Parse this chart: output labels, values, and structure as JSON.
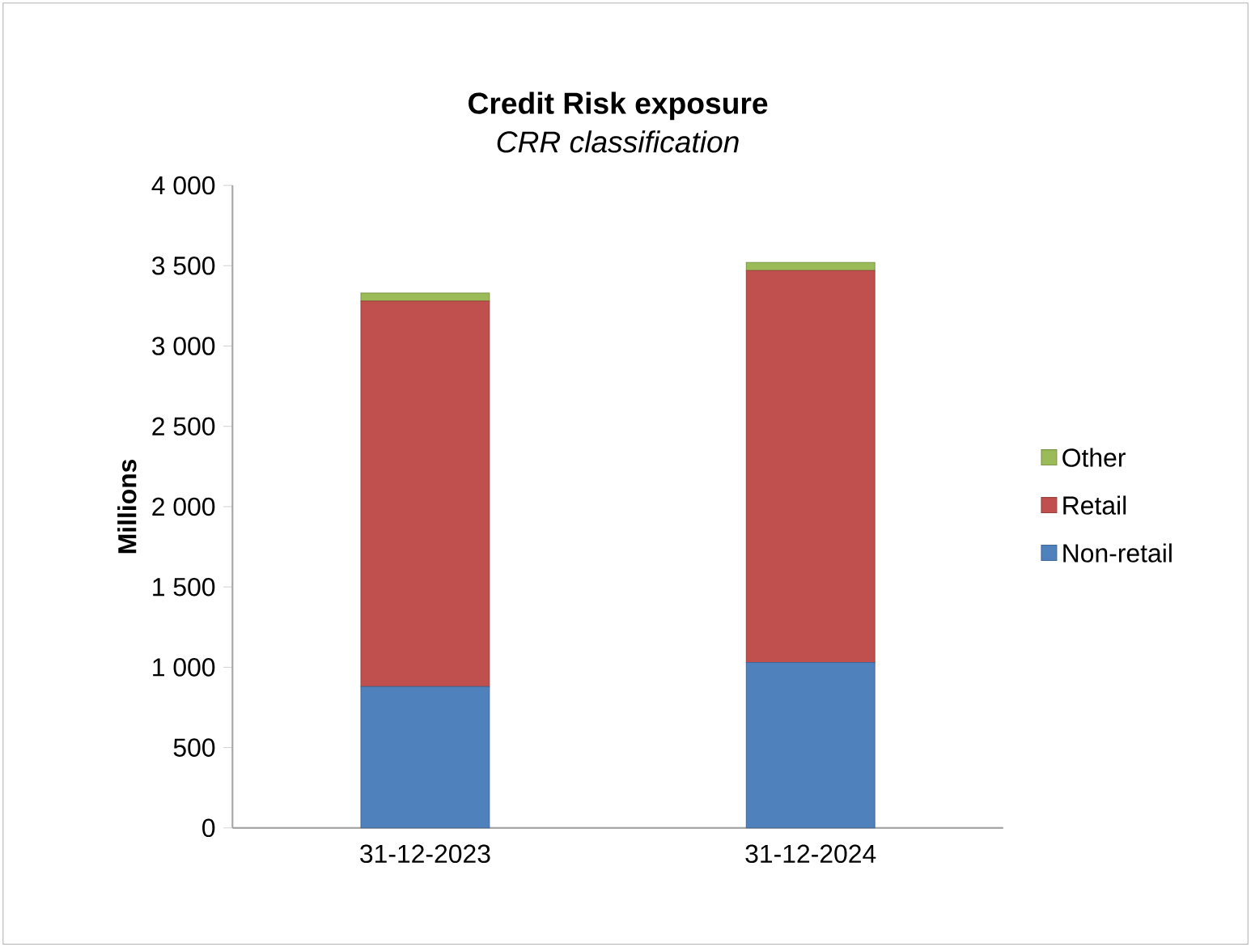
{
  "chart_data": {
    "type": "bar",
    "title": "Credit Risk exposure",
    "subtitle": "*CRR classification*",
    "ylabel": "Millions",
    "categories": [
      "31-12-2023",
      "31-12-2024"
    ],
    "stacked": true,
    "legend": "right",
    "series": [
      {
        "name": "Non-retail",
        "color": "#4f81bd",
        "values": [
          880,
          1030
        ]
      },
      {
        "name": "Retail",
        "color": "#c0504d",
        "values": [
          2400,
          2440
        ]
      },
      {
        "name": "Other",
        "color": "#9bbb59",
        "values": [
          50,
          50
        ]
      }
    ],
    "ylim": [
      0,
      4000
    ],
    "yticks": [
      {
        "value": 0,
        "label": "0"
      },
      {
        "value": 500,
        "label": "500"
      },
      {
        "value": 1000,
        "label": "1 000"
      },
      {
        "value": 1500,
        "label": "1 500"
      },
      {
        "value": 2000,
        "label": "2 000"
      },
      {
        "value": 2500,
        "label": "2 500"
      },
      {
        "value": 3000,
        "label": "3 000"
      },
      {
        "value": 3500,
        "label": "3 500"
      },
      {
        "value": 4000,
        "label": "4 000"
      }
    ],
    "grid": false
  }
}
